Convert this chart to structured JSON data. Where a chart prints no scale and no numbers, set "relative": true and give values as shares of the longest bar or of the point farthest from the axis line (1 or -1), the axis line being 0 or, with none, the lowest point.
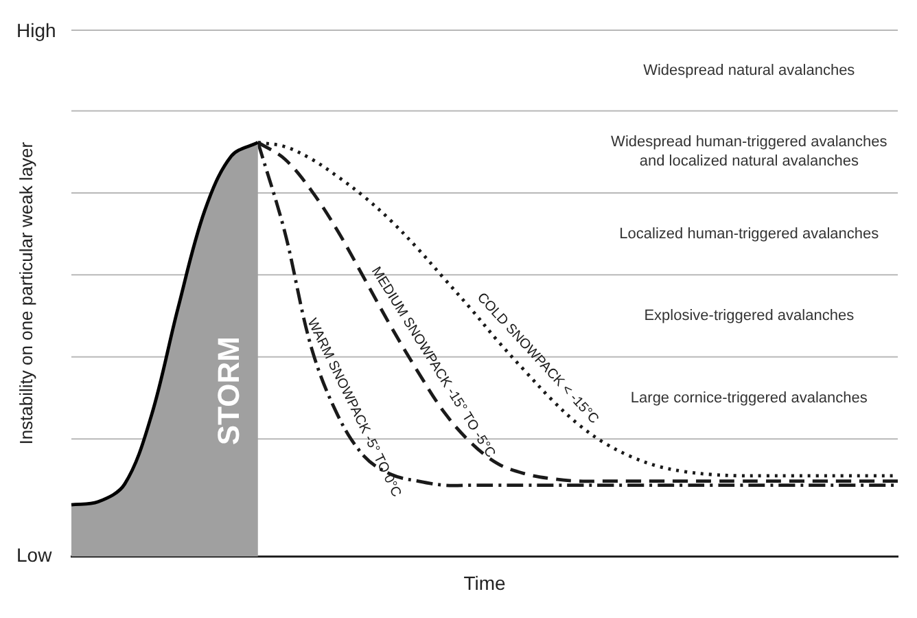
{
  "chart_data": {
    "type": "line",
    "relative": true,
    "xlabel": "Time",
    "ylabel": "Instability on one particular weak layer",
    "annotations": [
      "High",
      "Low",
      "Widespread natural avalanches",
      "Widespread human-triggered avalanches\nand localized natural avalanches",
      "Localized human-triggered avalanches",
      "Explosive-triggered avalanches",
      "Large cornice-triggered avalanches"
    ],
    "categories": [
      null,
      null,
      null,
      null,
      null,
      null,
      null,
      null,
      null,
      null,
      null,
      null,
      null,
      null,
      null,
      null,
      null,
      null,
      null,
      null,
      null,
      null,
      null,
      null,
      null,
      null,
      null,
      null,
      null,
      null,
      null,
      null
    ],
    "ref_lines": [
      {
        "axis": "y",
        "value": 1.271,
        "color": "#b8b8b8"
      },
      {
        "axis": "y",
        "value": 1.076,
        "color": "#b8b8b8"
      },
      {
        "axis": "y",
        "value": 0.878,
        "color": "#b8b8b8"
      },
      {
        "axis": "y",
        "value": 0.68,
        "color": "#b8b8b8"
      },
      {
        "axis": "y",
        "value": 0.482,
        "color": "#b8b8b8"
      },
      {
        "axis": "y",
        "value": 0.284,
        "color": "#b8b8b8"
      }
    ],
    "series": [
      {
        "name": "STORM",
        "type": "area",
        "color": "#a0a0a0",
        "values": [
          0.125,
          0.132,
          0.175,
          0.34,
          0.6,
          0.835,
          0.967,
          1,
          null,
          null,
          null,
          null,
          null,
          null,
          null,
          null,
          null,
          null,
          null,
          null,
          null,
          null,
          null,
          null,
          null,
          null,
          null,
          null,
          null,
          null,
          null,
          null
        ]
      },
      {
        "name": "COLD SNOWPACK < -15°C",
        "color": "#1a1a1a",
        "line_style": "dotted",
        "values": [
          null,
          null,
          null,
          null,
          null,
          null,
          null,
          1,
          0.99,
          0.96,
          0.917,
          0.868,
          0.81,
          0.743,
          0.67,
          0.597,
          0.52,
          0.449,
          0.38,
          0.32,
          0.274,
          0.241,
          0.218,
          0.205,
          0.198,
          0.195,
          0.195,
          0.195,
          0.195,
          0.195,
          0.195,
          0.195
        ]
      },
      {
        "name": "MEDIUM SNOWPACK -15° TO -5°C",
        "color": "#1a1a1a",
        "line_style": "dashed",
        "values": [
          null,
          null,
          null,
          null,
          null,
          null,
          null,
          1,
          0.96,
          0.884,
          0.785,
          0.67,
          0.554,
          0.446,
          0.347,
          0.274,
          0.224,
          0.2,
          0.188,
          0.182,
          0.182,
          0.182,
          0.182,
          0.182,
          0.182,
          0.182,
          0.182,
          0.182,
          0.182,
          0.182,
          0.182,
          0.182
        ]
      },
      {
        "name": "WARM SNOWPACK -5° TO 0°C",
        "color": "#1a1a1a",
        "line_style": "dashdot",
        "values": [
          null,
          null,
          null,
          null,
          null,
          null,
          null,
          1,
          0.785,
          0.505,
          0.34,
          0.241,
          0.198,
          0.182,
          0.172,
          0.172,
          0.172,
          0.172,
          0.172,
          0.172,
          0.172,
          0.172,
          0.172,
          0.172,
          0.172,
          0.172,
          0.172,
          0.172,
          0.172,
          0.172,
          0.172,
          0.172
        ]
      }
    ]
  }
}
